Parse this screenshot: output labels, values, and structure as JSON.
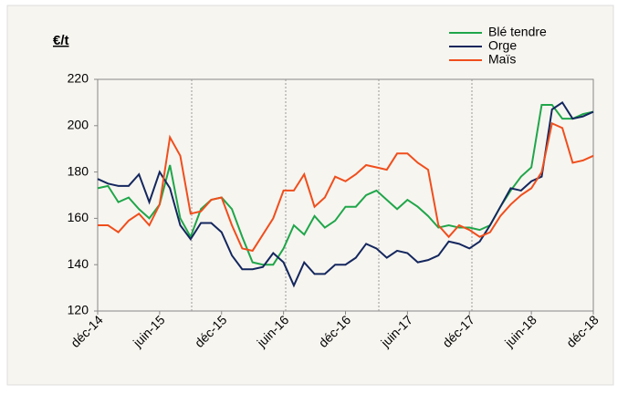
{
  "chart_data": {
    "type": "line",
    "y_label": "€/t",
    "categories": [
      "déc-14",
      null,
      null,
      null,
      null,
      null,
      "juin-15",
      null,
      null,
      null,
      null,
      null,
      "déc-15",
      null,
      null,
      null,
      null,
      null,
      "juin-16",
      null,
      null,
      null,
      null,
      null,
      "déc-16",
      null,
      null,
      null,
      null,
      null,
      "juin-17",
      null,
      null,
      null,
      null,
      null,
      "déc-17",
      null,
      null,
      null,
      null,
      null,
      "juin-18",
      null,
      null,
      null,
      null,
      null,
      "déc-18"
    ],
    "series": [
      {
        "name": "Blé tendre",
        "color": "#1fa64a",
        "values": [
          173,
          174,
          167,
          169,
          164,
          160,
          166,
          183,
          160,
          152,
          164,
          168,
          169,
          164,
          152,
          141,
          140,
          140,
          147,
          157,
          153,
          161,
          156,
          159,
          165,
          165,
          170,
          172,
          168,
          164,
          168,
          165,
          161,
          156,
          157,
          156,
          156,
          155,
          157,
          165,
          172,
          178,
          182,
          209,
          209,
          203,
          203,
          205,
          206
        ]
      },
      {
        "name": "Orge",
        "color": "#14275e",
        "values": [
          177,
          175,
          174,
          174,
          179,
          167,
          180,
          173,
          157,
          151,
          158,
          158,
          154,
          144,
          138,
          138,
          139,
          145,
          141,
          131,
          141,
          136,
          136,
          140,
          140,
          143,
          149,
          147,
          143,
          146,
          145,
          141,
          142,
          144,
          150,
          149,
          147,
          150,
          157,
          165,
          173,
          172,
          176,
          178,
          207,
          210,
          203,
          204,
          206
        ]
      },
      {
        "name": "Maïs",
        "color": "#f04e1c",
        "values": [
          157,
          157,
          154,
          159,
          162,
          157,
          166,
          195,
          187,
          162,
          163,
          168,
          169,
          157,
          147,
          146,
          153,
          160,
          172,
          172,
          179,
          165,
          169,
          178,
          176,
          179,
          183,
          182,
          181,
          188,
          188,
          184,
          181,
          157,
          152,
          157,
          155,
          152,
          154,
          161,
          166,
          170,
          173,
          180,
          201,
          199,
          184,
          185,
          187
        ]
      }
    ],
    "ylim": [
      120,
      220
    ],
    "yticks": [
      120,
      140,
      160,
      180,
      200,
      220
    ]
  }
}
